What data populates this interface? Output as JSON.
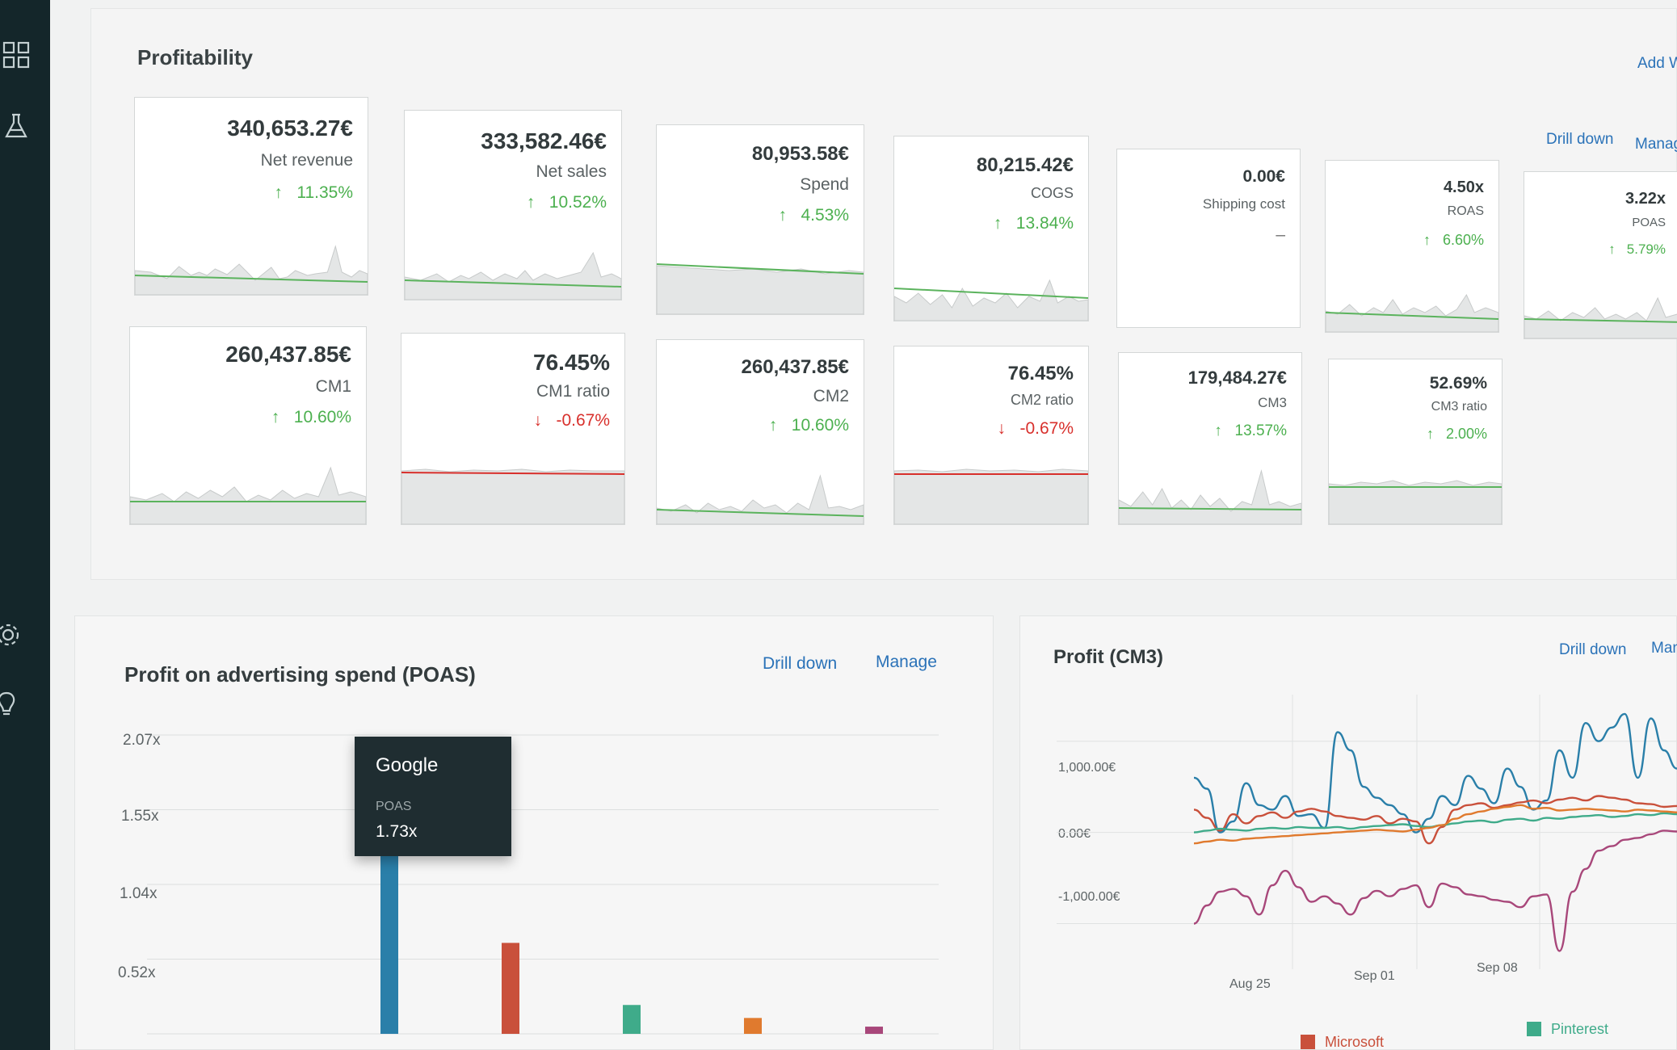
{
  "sidebar": {
    "items": [
      {
        "icon": "dashboard-grid-icon"
      },
      {
        "icon": "flask-icon"
      },
      {
        "icon": "gear-icon"
      },
      {
        "icon": "lightbulb-icon"
      }
    ]
  },
  "profitability": {
    "title": "Profitability",
    "add_widget_label": "Add W",
    "drill_down_label": "Drill down",
    "manage_label": "Manag",
    "cards": [
      {
        "value": "340,653.27€",
        "label": "Net revenue",
        "change": "11.35%",
        "direction": "up"
      },
      {
        "value": "333,582.46€",
        "label": "Net sales",
        "change": "10.52%",
        "direction": "up"
      },
      {
        "value": "80,953.58€",
        "label": "Spend",
        "change": "4.53%",
        "direction": "up"
      },
      {
        "value": "80,215.42€",
        "label": "COGS",
        "change": "13.84%",
        "direction": "up"
      },
      {
        "value": "0.00€",
        "label": "Shipping cost",
        "change": "–",
        "direction": "none"
      },
      {
        "value": "4.50x",
        "label": "ROAS",
        "change": "6.60%",
        "direction": "up"
      },
      {
        "value": "3.22x",
        "label": "POAS",
        "change": "5.79%",
        "direction": "up"
      },
      {
        "value": "260,437.85€",
        "label": "CM1",
        "change": "10.60%",
        "direction": "up"
      },
      {
        "value": "76.45%",
        "label": "CM1 ratio",
        "change": "-0.67%",
        "direction": "down"
      },
      {
        "value": "260,437.85€",
        "label": "CM2",
        "change": "10.60%",
        "direction": "up"
      },
      {
        "value": "76.45%",
        "label": "CM2 ratio",
        "change": "-0.67%",
        "direction": "down"
      },
      {
        "value": "179,484.27€",
        "label": "CM3",
        "change": "13.57%",
        "direction": "up"
      },
      {
        "value": "52.69%",
        "label": "CM3 ratio",
        "change": "2.00%",
        "direction": "up"
      }
    ]
  },
  "poas": {
    "title": "Profit on advertising spend (POAS)",
    "drill_down_label": "Drill down",
    "manage_label": "Manage",
    "tooltip": {
      "title": "Google",
      "metric": "POAS",
      "value": "1.73x"
    },
    "chart_data": {
      "type": "bar",
      "categories": [
        "Google",
        "Microsoft",
        "Pinterest",
        "",
        ""
      ],
      "values": [
        1.73,
        0.63,
        0.2,
        0.11,
        0.05
      ],
      "colors": [
        "#2a7fa9",
        "#c9503b",
        "#3fab8a",
        "#e07a2e",
        "#a8477a"
      ],
      "yticks": [
        "2.07x",
        "1.55x",
        "1.04x",
        "0.52x"
      ],
      "ylim": [
        0,
        2.07
      ],
      "grid": true
    }
  },
  "cm3": {
    "title": "Profit (CM3)",
    "drill_down_label": "Drill down",
    "manage_label": "Man",
    "chart_data": {
      "type": "line",
      "yticks": [
        "1,000.00€",
        "0.00€",
        "-1,000.00€"
      ],
      "xticks": [
        "Aug 25",
        "Sep 01",
        "Sep 08"
      ],
      "ylim": [
        -1500,
        1600
      ],
      "grid": true,
      "legend": [
        {
          "name": "Microsoft",
          "color": "#c9503b"
        },
        {
          "name": "Pinterest",
          "color": "#3fab8a"
        }
      ],
      "series": [
        {
          "color": "#2a7fa9",
          "values": [
            600,
            480,
            0,
            120,
            540,
            300,
            250,
            400,
            180,
            200,
            50,
            1100,
            900,
            500,
            380,
            300,
            200,
            0,
            150,
            400,
            300,
            620,
            480,
            320,
            700,
            500,
            250,
            350,
            900,
            600,
            1200,
            1000,
            1150,
            1300,
            600,
            1250,
            900,
            700
          ]
        },
        {
          "color": "#c9503b",
          "values": [
            250,
            160,
            20,
            200,
            100,
            180,
            220,
            160,
            230,
            260,
            230,
            180,
            160,
            140,
            180,
            100,
            150,
            120,
            -120,
            60,
            250,
            300,
            320,
            270,
            300,
            330,
            350,
            320,
            360,
            380,
            350,
            400,
            380,
            360,
            320,
            310,
            280,
            290
          ]
        },
        {
          "color": "#3fab8a",
          "values": [
            0,
            20,
            40,
            30,
            20,
            40,
            50,
            40,
            60,
            50,
            50,
            60,
            40,
            60,
            70,
            80,
            90,
            70,
            60,
            80,
            100,
            120,
            130,
            110,
            140,
            150,
            130,
            160,
            150,
            170,
            180,
            190,
            170,
            180,
            200,
            190,
            210,
            200
          ]
        },
        {
          "color": "#e07a2e",
          "values": [
            -120,
            -100,
            -80,
            -90,
            -70,
            -60,
            -50,
            -40,
            -30,
            -20,
            -10,
            0,
            10,
            20,
            30,
            20,
            10,
            30,
            50,
            80,
            150,
            200,
            230,
            260,
            280,
            300,
            260,
            270,
            240,
            250,
            260,
            250,
            240,
            230,
            250,
            240,
            230,
            220
          ]
        },
        {
          "color": "#a8477a",
          "values": [
            -1000,
            -800,
            -650,
            -620,
            -700,
            -900,
            -580,
            -420,
            -600,
            -760,
            -700,
            -780,
            -900,
            -720,
            -640,
            -700,
            -620,
            -580,
            -820,
            -560,
            -600,
            -680,
            -700,
            -740,
            -760,
            -820,
            -700,
            -680,
            -1300,
            -650,
            -400,
            -200,
            -150,
            -80,
            -60,
            -20,
            20,
            10
          ]
        }
      ]
    }
  }
}
